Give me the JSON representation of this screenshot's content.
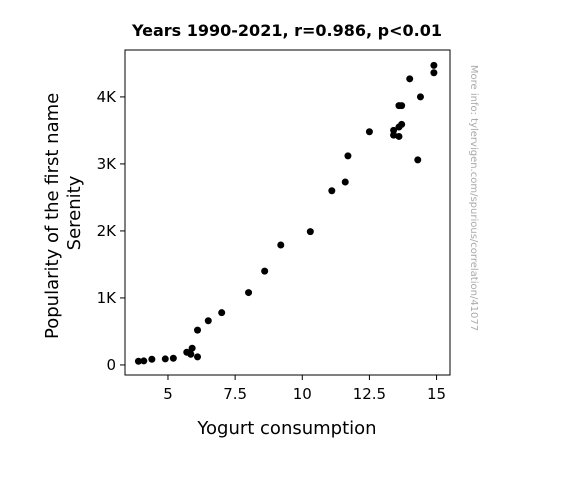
{
  "chart_data": {
    "type": "scatter",
    "title": "Years 1990-2021, r=0.986, p<0.01",
    "xlabel": "Yogurt consumption",
    "ylabel_lines": [
      "Popularity of the first name",
      "Serenity"
    ],
    "watermark": "More info: tylervigen.com/spurious/correlation/41077",
    "xlim": [
      3.4,
      15.5
    ],
    "ylim": [
      -150,
      4700
    ],
    "x_ticks": [
      {
        "value": 5,
        "label": "5"
      },
      {
        "value": 7.5,
        "label": "7.5"
      },
      {
        "value": 10,
        "label": "10"
      },
      {
        "value": 12.5,
        "label": "12.5"
      },
      {
        "value": 15,
        "label": "15"
      }
    ],
    "y_ticks": [
      {
        "value": 0,
        "label": "0"
      },
      {
        "value": 1000,
        "label": "1K"
      },
      {
        "value": 2000,
        "label": "2K"
      },
      {
        "value": 3000,
        "label": "3K"
      },
      {
        "value": 4000,
        "label": "4K"
      }
    ],
    "grid": false,
    "point_color": "#000000",
    "points": [
      {
        "x": 3.9,
        "y": 55
      },
      {
        "x": 4.1,
        "y": 60
      },
      {
        "x": 4.4,
        "y": 85
      },
      {
        "x": 4.9,
        "y": 90
      },
      {
        "x": 5.2,
        "y": 100
      },
      {
        "x": 5.7,
        "y": 190
      },
      {
        "x": 5.85,
        "y": 160
      },
      {
        "x": 5.9,
        "y": 250
      },
      {
        "x": 6.1,
        "y": 120
      },
      {
        "x": 6.1,
        "y": 520
      },
      {
        "x": 6.5,
        "y": 660
      },
      {
        "x": 7.0,
        "y": 780
      },
      {
        "x": 8.0,
        "y": 1080
      },
      {
        "x": 8.6,
        "y": 1400
      },
      {
        "x": 9.2,
        "y": 1790
      },
      {
        "x": 10.3,
        "y": 1990
      },
      {
        "x": 11.1,
        "y": 2600
      },
      {
        "x": 11.6,
        "y": 2730
      },
      {
        "x": 11.7,
        "y": 3120
      },
      {
        "x": 12.5,
        "y": 3480
      },
      {
        "x": 13.4,
        "y": 3430
      },
      {
        "x": 13.4,
        "y": 3500
      },
      {
        "x": 13.6,
        "y": 3410
      },
      {
        "x": 13.6,
        "y": 3550
      },
      {
        "x": 13.7,
        "y": 3590
      },
      {
        "x": 13.6,
        "y": 3870
      },
      {
        "x": 13.7,
        "y": 3870
      },
      {
        "x": 14.0,
        "y": 4270
      },
      {
        "x": 14.3,
        "y": 3060
      },
      {
        "x": 14.4,
        "y": 4000
      },
      {
        "x": 14.9,
        "y": 4360
      },
      {
        "x": 14.9,
        "y": 4470
      }
    ]
  }
}
